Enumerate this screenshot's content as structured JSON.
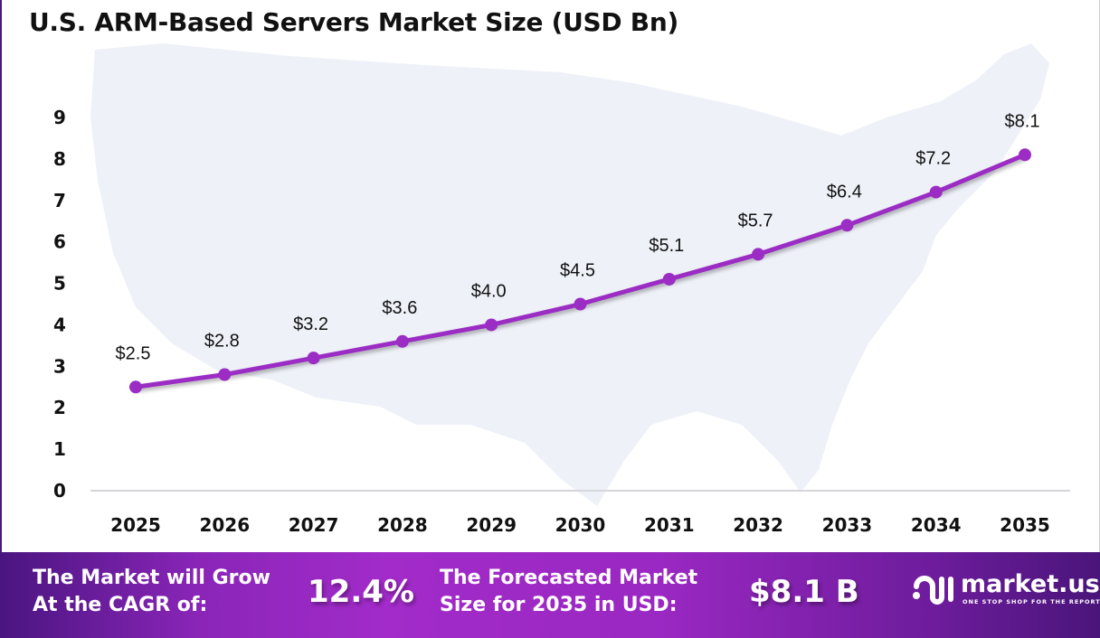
{
  "chart_data": {
    "type": "line",
    "title": "U.S. ARM-Based Servers Market Size (USD Bn)",
    "categories": [
      "2025",
      "2026",
      "2027",
      "2028",
      "2029",
      "2030",
      "2031",
      "2032",
      "2033",
      "2034",
      "2035"
    ],
    "values": [
      2.5,
      2.8,
      3.2,
      3.6,
      4.0,
      4.5,
      5.1,
      5.7,
      6.4,
      7.2,
      8.1
    ],
    "data_labels": [
      "$2.5",
      "$2.8",
      "$3.2",
      "$3.6",
      "$4.0",
      "$4.5",
      "$5.1",
      "$5.7",
      "$6.4",
      "$7.2",
      "$8.1"
    ],
    "yticks": [
      "0",
      "1",
      "2",
      "3",
      "4",
      "5",
      "6",
      "7",
      "8",
      "9"
    ],
    "ylim": [
      0,
      9
    ],
    "grid": false,
    "line_color": "#9b2cc4",
    "background": "U.S. map silhouette"
  },
  "footer": {
    "cagr_label": [
      "The Market will Grow",
      "At the CAGR of:"
    ],
    "cagr_value": "12.4%",
    "forecast_label": [
      "The Forecasted Market",
      "Size for 2035 in USD:"
    ],
    "forecast_value": "$8.1 B",
    "brand": "market.us",
    "tagline": "ONE STOP SHOP FOR THE REPORTS"
  }
}
